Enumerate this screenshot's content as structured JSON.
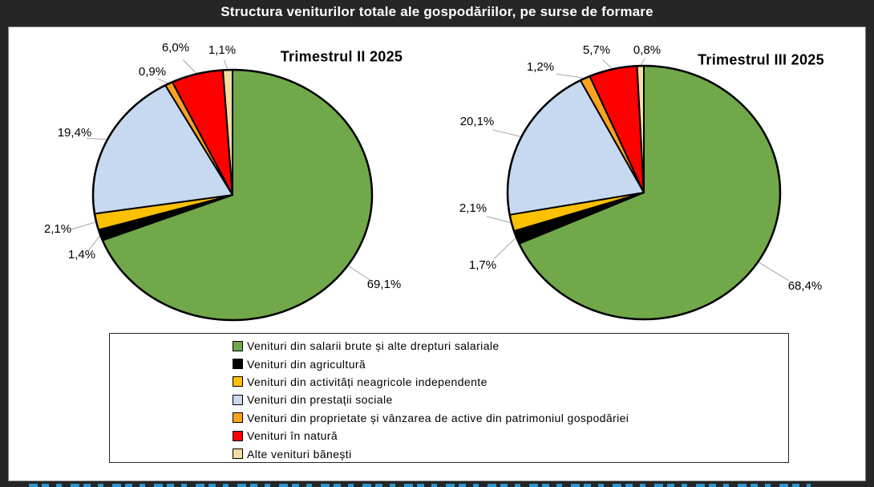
{
  "header": {
    "title": "Structura veniturilor totale ale gospodăriilor, pe surse de formare"
  },
  "legend": {
    "items": [
      {
        "label": "Venituri din salarii brute și alte drepturi salariale",
        "color": "#70A84A"
      },
      {
        "label": "Venituri din agricultură",
        "color": "#000000"
      },
      {
        "label": "Venituri din activități neagricole independente",
        "color": "#FFC000"
      },
      {
        "label": "Venituri din prestații sociale",
        "color": "#C6D9F0"
      },
      {
        "label": "Venituri din proprietate și vânzarea de active din patrimoniul gospodăriei",
        "color": "#FFA21F"
      },
      {
        "label": "Venituri în natură",
        "color": "#FF0000"
      },
      {
        "label": "Alte venituri bănești",
        "color": "#F2DEA2"
      }
    ]
  },
  "chart_data": [
    {
      "type": "pie",
      "title": "Trimestrul II 2025",
      "categories": [
        "Venituri din salarii brute și alte drepturi salariale",
        "Venituri din agricultură",
        "Venituri din activități neagricole independente",
        "Venituri din prestații sociale",
        "Venituri din proprietate și vânzarea de active din patrimoniul gospodăriei",
        "Venituri în natură",
        "Alte venituri bănești"
      ],
      "values": [
        69.1,
        1.4,
        2.1,
        19.4,
        0.9,
        6.0,
        1.1
      ],
      "value_labels": [
        "69,1%",
        "1,4%",
        "2,1%",
        "19,4%",
        "0,9%",
        "6,0%",
        "1,1%"
      ],
      "start_angle_deg": 0,
      "direction": "clockwise",
      "legend_position": "bottom-shared"
    },
    {
      "type": "pie",
      "title": "Trimestrul III 2025",
      "categories": [
        "Venituri din salarii brute și alte drepturi salariale",
        "Venituri din agricultură",
        "Venituri din activități neagricole independente",
        "Venituri din prestații sociale",
        "Venituri din proprietate și vânzarea de active din patrimoniul gospodăriei",
        "Venituri în natură",
        "Alte venituri bănești"
      ],
      "values": [
        68.4,
        1.7,
        2.1,
        20.1,
        1.2,
        5.7,
        0.8
      ],
      "value_labels": [
        "68,4%",
        "1,7%",
        "2,1%",
        "20,1%",
        "1,2%",
        "5,7%",
        "0,8%"
      ],
      "start_angle_deg": 0,
      "direction": "clockwise",
      "legend_position": "bottom-shared"
    }
  ],
  "colors": {
    "frame_background": "#262626",
    "panel_background": "#ffffff",
    "title_text": "#ffffff",
    "leader_line": "#a6a6a6",
    "slice_outline": "#000000",
    "footer_link_blue": "#2e9bd6"
  }
}
